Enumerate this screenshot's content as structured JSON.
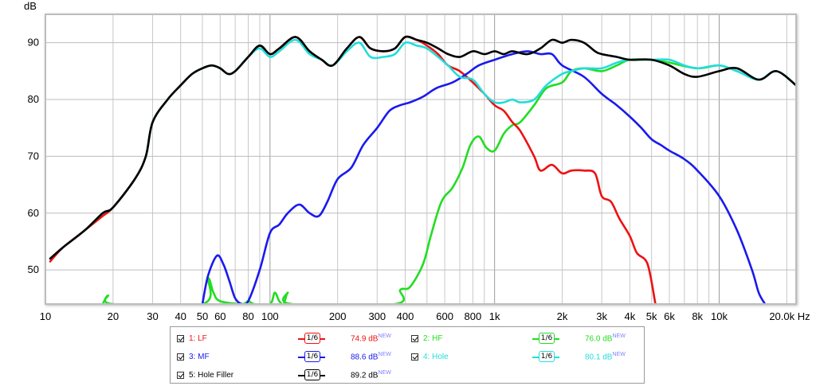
{
  "chart_data": {
    "type": "line",
    "ylabel": "dB",
    "x_scale": "log",
    "xlim": [
      10,
      22000
    ],
    "ylim": [
      44,
      95
    ],
    "x_ticks": [
      {
        "v": 10,
        "label": "10"
      },
      {
        "v": 20,
        "label": "20"
      },
      {
        "v": 30,
        "label": "30"
      },
      {
        "v": 40,
        "label": "40"
      },
      {
        "v": 50,
        "label": "50"
      },
      {
        "v": 60,
        "label": "60"
      },
      {
        "v": 80,
        "label": "80"
      },
      {
        "v": 100,
        "label": "100"
      },
      {
        "v": 200,
        "label": "200"
      },
      {
        "v": 300,
        "label": "300"
      },
      {
        "v": 400,
        "label": "400"
      },
      {
        "v": 600,
        "label": "600"
      },
      {
        "v": 800,
        "label": "800"
      },
      {
        "v": 1000,
        "label": "1k"
      },
      {
        "v": 2000,
        "label": "2k"
      },
      {
        "v": 3000,
        "label": "3k"
      },
      {
        "v": 4000,
        "label": "4k"
      },
      {
        "v": 5000,
        "label": "5k"
      },
      {
        "v": 6000,
        "label": "6k"
      },
      {
        "v": 8000,
        "label": "8k"
      },
      {
        "v": 10000,
        "label": "10k"
      },
      {
        "v": 20000,
        "label": "20.0k Hz"
      }
    ],
    "y_ticks": [
      50,
      60,
      70,
      80,
      90
    ],
    "series": [
      {
        "name": "2: HF",
        "color": "#22dd22",
        "points": [
          [
            18,
            44
          ],
          [
            19,
            45.5
          ],
          [
            20,
            44
          ],
          [
            50,
            44
          ],
          [
            53,
            48.5
          ],
          [
            56,
            46
          ],
          [
            60,
            44.5
          ],
          [
            75,
            44
          ],
          [
            80,
            44.5
          ],
          [
            85,
            44
          ],
          [
            100,
            44
          ],
          [
            105,
            46
          ],
          [
            110,
            44.5
          ],
          [
            115,
            44
          ],
          [
            120,
            46
          ],
          [
            125,
            44
          ],
          [
            360,
            44
          ],
          [
            380,
            46.5
          ],
          [
            420,
            47
          ],
          [
            480,
            51
          ],
          [
            520,
            56
          ],
          [
            580,
            62
          ],
          [
            650,
            64.5
          ],
          [
            720,
            68
          ],
          [
            780,
            72
          ],
          [
            850,
            73.5
          ],
          [
            920,
            71.5
          ],
          [
            1000,
            71
          ],
          [
            1100,
            74
          ],
          [
            1200,
            75.5
          ],
          [
            1300,
            76
          ],
          [
            1500,
            79
          ],
          [
            1700,
            82
          ],
          [
            2000,
            83
          ],
          [
            2200,
            85
          ],
          [
            2500,
            85.5
          ],
          [
            3000,
            85
          ],
          [
            3500,
            86
          ],
          [
            4000,
            87
          ],
          [
            5000,
            87
          ],
          [
            6000,
            86.5
          ],
          [
            8000,
            85.5
          ],
          [
            10000,
            86
          ],
          [
            12000,
            85
          ]
        ]
      },
      {
        "name": "1: LF",
        "color": "#ee1111",
        "points": [
          [
            10.5,
            51.5
          ],
          [
            12,
            54
          ],
          [
            15,
            57
          ],
          [
            18,
            59.5
          ],
          [
            20,
            61
          ],
          [
            25,
            66
          ],
          [
            28,
            70
          ],
          [
            30,
            76
          ],
          [
            35,
            80
          ],
          [
            40,
            82.5
          ],
          [
            45,
            84.5
          ],
          [
            50,
            85.5
          ],
          [
            55,
            86
          ],
          [
            60,
            85.5
          ],
          [
            65,
            84.5
          ],
          [
            70,
            85
          ],
          [
            80,
            87.5
          ],
          [
            90,
            89.5
          ],
          [
            100,
            88
          ],
          [
            110,
            89
          ],
          [
            130,
            91
          ],
          [
            150,
            88.5
          ],
          [
            170,
            87
          ],
          [
            190,
            86
          ],
          [
            220,
            89
          ],
          [
            250,
            91
          ],
          [
            280,
            89
          ],
          [
            320,
            88.5
          ],
          [
            360,
            89
          ],
          [
            400,
            91
          ],
          [
            450,
            90.5
          ],
          [
            500,
            89.5
          ],
          [
            560,
            88
          ],
          [
            620,
            86
          ],
          [
            700,
            85
          ],
          [
            800,
            83
          ],
          [
            900,
            81
          ],
          [
            1000,
            79
          ],
          [
            1100,
            78
          ],
          [
            1200,
            76
          ],
          [
            1300,
            74.5
          ],
          [
            1500,
            70
          ],
          [
            1600,
            67.5
          ],
          [
            1800,
            68.5
          ],
          [
            2000,
            67
          ],
          [
            2200,
            67.5
          ],
          [
            2500,
            67.5
          ],
          [
            2800,
            67
          ],
          [
            3000,
            63
          ],
          [
            3300,
            62
          ],
          [
            3600,
            59
          ],
          [
            4000,
            56
          ],
          [
            4300,
            53
          ],
          [
            4800,
            51
          ],
          [
            5200,
            44
          ]
        ]
      },
      {
        "name": "3: MF",
        "color": "#1a1aee",
        "points": [
          [
            50,
            44
          ],
          [
            53,
            49
          ],
          [
            58,
            52.5
          ],
          [
            62,
            51
          ],
          [
            66,
            48
          ],
          [
            70,
            45
          ],
          [
            75,
            44
          ],
          [
            80,
            44.5
          ],
          [
            90,
            50
          ],
          [
            100,
            56.5
          ],
          [
            110,
            58
          ],
          [
            120,
            60
          ],
          [
            135,
            61.5
          ],
          [
            150,
            60
          ],
          [
            165,
            59.5
          ],
          [
            180,
            62
          ],
          [
            200,
            66
          ],
          [
            230,
            68
          ],
          [
            260,
            72
          ],
          [
            300,
            75
          ],
          [
            340,
            78
          ],
          [
            380,
            79
          ],
          [
            420,
            79.5
          ],
          [
            480,
            80.5
          ],
          [
            550,
            82
          ],
          [
            650,
            83
          ],
          [
            750,
            84.5
          ],
          [
            850,
            86
          ],
          [
            1000,
            87
          ],
          [
            1200,
            88
          ],
          [
            1400,
            88.5
          ],
          [
            1600,
            88
          ],
          [
            1800,
            88
          ],
          [
            2000,
            86
          ],
          [
            2500,
            84
          ],
          [
            3000,
            81
          ],
          [
            3500,
            79
          ],
          [
            4000,
            77
          ],
          [
            4500,
            75
          ],
          [
            5000,
            73
          ],
          [
            5500,
            72
          ],
          [
            6000,
            71
          ],
          [
            7000,
            69.5
          ],
          [
            8000,
            67.5
          ],
          [
            10000,
            63
          ],
          [
            12000,
            57
          ],
          [
            14000,
            50
          ],
          [
            15000,
            46
          ],
          [
            16000,
            44
          ]
        ]
      },
      {
        "name": "4: Hole",
        "color": "#22dddd",
        "points": [
          [
            10.5,
            52
          ],
          [
            12,
            54
          ],
          [
            15,
            57
          ],
          [
            18,
            60
          ],
          [
            20,
            61
          ],
          [
            25,
            66
          ],
          [
            28,
            70
          ],
          [
            30,
            76
          ],
          [
            35,
            80
          ],
          [
            40,
            82.5
          ],
          [
            45,
            84.5
          ],
          [
            50,
            85.5
          ],
          [
            55,
            86
          ],
          [
            60,
            85.5
          ],
          [
            65,
            84.5
          ],
          [
            70,
            85
          ],
          [
            80,
            87.5
          ],
          [
            90,
            89
          ],
          [
            100,
            87.5
          ],
          [
            110,
            88.5
          ],
          [
            130,
            90.5
          ],
          [
            150,
            88
          ],
          [
            170,
            87
          ],
          [
            190,
            86
          ],
          [
            220,
            88.5
          ],
          [
            250,
            90
          ],
          [
            280,
            87.5
          ],
          [
            320,
            87.5
          ],
          [
            360,
            88
          ],
          [
            400,
            90
          ],
          [
            450,
            89.5
          ],
          [
            500,
            89
          ],
          [
            560,
            87.5
          ],
          [
            620,
            86
          ],
          [
            700,
            84
          ],
          [
            800,
            83.5
          ],
          [
            900,
            81
          ],
          [
            1000,
            79.5
          ],
          [
            1100,
            79.5
          ],
          [
            1200,
            80
          ],
          [
            1300,
            79.5
          ],
          [
            1500,
            80
          ],
          [
            1700,
            82.5
          ],
          [
            2000,
            84.5
          ],
          [
            2200,
            85
          ],
          [
            2500,
            85.5
          ],
          [
            3000,
            85.5
          ],
          [
            3500,
            86.5
          ],
          [
            4000,
            87
          ],
          [
            5000,
            87
          ],
          [
            6000,
            87
          ],
          [
            7000,
            86
          ],
          [
            8000,
            85.5
          ],
          [
            10000,
            86
          ],
          [
            12000,
            85
          ],
          [
            15000,
            83.5
          ],
          [
            18000,
            85
          ],
          [
            22000,
            82.5
          ]
        ]
      },
      {
        "name": "5: Hole Filler",
        "color": "#000000",
        "points": [
          [
            10.5,
            52
          ],
          [
            12,
            54
          ],
          [
            15,
            57
          ],
          [
            18,
            60
          ],
          [
            20,
            61
          ],
          [
            25,
            66
          ],
          [
            28,
            70
          ],
          [
            30,
            76
          ],
          [
            35,
            80
          ],
          [
            40,
            82.5
          ],
          [
            45,
            84.5
          ],
          [
            50,
            85.5
          ],
          [
            55,
            86
          ],
          [
            60,
            85.5
          ],
          [
            65,
            84.5
          ],
          [
            70,
            85
          ],
          [
            80,
            87.5
          ],
          [
            90,
            89.5
          ],
          [
            100,
            88
          ],
          [
            110,
            89
          ],
          [
            130,
            91
          ],
          [
            150,
            88.5
          ],
          [
            170,
            87
          ],
          [
            190,
            86
          ],
          [
            220,
            89
          ],
          [
            250,
            91
          ],
          [
            280,
            89
          ],
          [
            320,
            88.5
          ],
          [
            360,
            89
          ],
          [
            400,
            91
          ],
          [
            450,
            90.5
          ],
          [
            500,
            90
          ],
          [
            560,
            89
          ],
          [
            620,
            88
          ],
          [
            700,
            87.5
          ],
          [
            800,
            88.5
          ],
          [
            900,
            88
          ],
          [
            1000,
            88.5
          ],
          [
            1100,
            88
          ],
          [
            1200,
            88.5
          ],
          [
            1400,
            88
          ],
          [
            1600,
            89
          ],
          [
            1800,
            90.5
          ],
          [
            2000,
            90
          ],
          [
            2200,
            90.5
          ],
          [
            2500,
            90
          ],
          [
            2800,
            88.5
          ],
          [
            3000,
            88
          ],
          [
            3500,
            87.5
          ],
          [
            4000,
            87
          ],
          [
            5000,
            87
          ],
          [
            6000,
            86
          ],
          [
            7000,
            84.5
          ],
          [
            8000,
            84
          ],
          [
            10000,
            85
          ],
          [
            12000,
            85.5
          ],
          [
            15000,
            83.5
          ],
          [
            18000,
            85
          ],
          [
            22000,
            82.5
          ]
        ]
      }
    ]
  },
  "legend": {
    "entries": [
      {
        "label": "1: LF",
        "color": "#ee1111",
        "smoothing": "1/6",
        "level": "74.9 dB",
        "tag": "NEW"
      },
      {
        "label": "2: HF",
        "color": "#22dd22",
        "smoothing": "1/6",
        "level": "76.0 dB",
        "tag": "NEW"
      },
      {
        "label": "3: MF",
        "color": "#1a1aee",
        "smoothing": "1/6",
        "level": "88.6 dB",
        "tag": "NEW"
      },
      {
        "label": "4: Hole",
        "color": "#22dddd",
        "smoothing": "1/6",
        "level": "80.1 dB",
        "tag": "NEW"
      },
      {
        "label": "5: Hole Filler",
        "color": "#000000",
        "smoothing": "1/6",
        "level": "89.2 dB",
        "tag": "NEW"
      }
    ]
  }
}
